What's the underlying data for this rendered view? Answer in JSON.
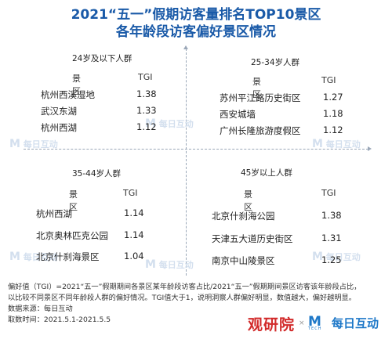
{
  "title_line1": "2021“五一”假期访客量排名TOP10景区",
  "title_line2": "各年龄段访客偏好景区情况",
  "chart_data": {
    "type": "table",
    "panels": [
      {
        "title": "24岁及以下人群",
        "col_name": "景区",
        "col_value": "TGI",
        "rows": [
          {
            "name": "杭州西溪湿地",
            "tgi": "1.38"
          },
          {
            "name": "武汉东湖",
            "tgi": "1.33"
          },
          {
            "name": "杭州西湖",
            "tgi": "1.12"
          }
        ]
      },
      {
        "title": "25-34岁人群",
        "col_name": "景区",
        "col_value": "TGI",
        "rows": [
          {
            "name": "苏州平江路历史街区",
            "tgi": "1.27"
          },
          {
            "name": "西安城墙",
            "tgi": "1.18"
          },
          {
            "name": "广州长隆旅游度假区",
            "tgi": "1.12"
          }
        ]
      },
      {
        "title": "35-44岁人群",
        "col_name": "景区",
        "col_value": "TGI",
        "rows": [
          {
            "name": "杭州西湖",
            "tgi": "1.14"
          },
          {
            "name": "北京奥林匹克公园",
            "tgi": "1.14"
          },
          {
            "name": "北京什刹海景区",
            "tgi": "1.04"
          }
        ]
      },
      {
        "title": "45岁以上人群",
        "col_name": "景区",
        "col_value": "TGI",
        "rows": [
          {
            "name": "北京什刹海公园",
            "tgi": "1.38"
          },
          {
            "name": "天津五大道历史街区",
            "tgi": "1.31"
          },
          {
            "name": "南京中山陵景区",
            "tgi": "1.25"
          }
        ]
      }
    ]
  },
  "footer": {
    "note1": "偏好值（TGI）=2021“五一”假期期间各景区某年龄段访客占比/2021“五一”假期期间景区访客该年龄段占比，",
    "note2": "以比较不同景区不同年龄段人群的偏好情况。TGI值大于1，说明洞察人群偏好明显，数值越大，偏好越明显。",
    "source": "数据来源：每日互动",
    "period": "取数时间：2021.5.1-2021.5.5"
  },
  "logos": {
    "left": "观研院",
    "sep": "×",
    "right_mark": "M",
    "right_tech": "TECH",
    "right_name": "每日互动"
  },
  "watermark": {
    "mark": "M",
    "text": "每日互动"
  },
  "colors": {
    "title": "#1a5aa8",
    "logo_left": "#d22b2b",
    "logo_right": "#1e78c8"
  }
}
